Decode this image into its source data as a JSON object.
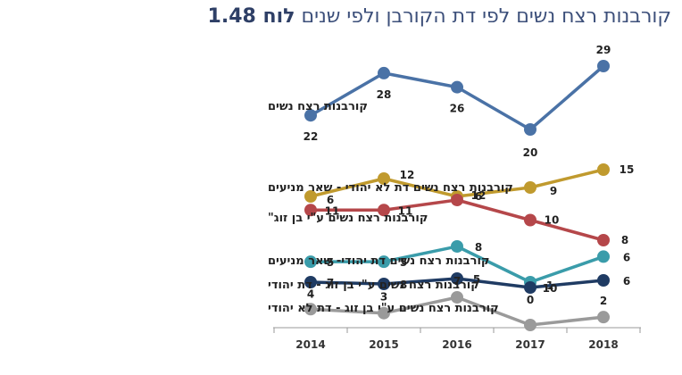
{
  "chart_data": {
    "type": "line",
    "title_prefix": "לוח 1.48",
    "title": "קורבנות רצח נשים לפי דת הקורבן ולפי שנים",
    "x": [
      "2014",
      "2015",
      "2016",
      "2017",
      "2018"
    ],
    "series": [
      {
        "name": "קורבנות רצח נשים",
        "values": [
          22,
          28,
          26,
          20,
          29
        ],
        "color": "#4a72a6"
      },
      {
        "name": "קורבנות רצח נשים דת לא יהודי - שאר מניעים",
        "values": [
          6,
          12,
          6,
          9,
          15
        ],
        "color": "#c09a2e"
      },
      {
        "name": "קורבנות רצח נשים ע\"י בן זוג\"",
        "values": [
          11,
          11,
          12,
          10,
          8
        ],
        "color": "#b5474a"
      },
      {
        "name": "קורבנות רצח נשים דת יהודי- שאר מניעים",
        "values": [
          5,
          5,
          8,
          1,
          6
        ],
        "color": "#3a9caa"
      },
      {
        "name": "קורבנות רצח נשים ע\"י בן זוג - דת יהודי",
        "values": [
          7,
          8,
          5,
          10,
          6
        ],
        "color": "#1f3b63"
      },
      {
        "name": "קורבנות רצח נשים ע\"י בן זוג - דת לא יהודי",
        "values": [
          4,
          3,
          7,
          0,
          2
        ],
        "color": "#9a9a9a"
      }
    ],
    "grid": false,
    "legend": "left"
  }
}
